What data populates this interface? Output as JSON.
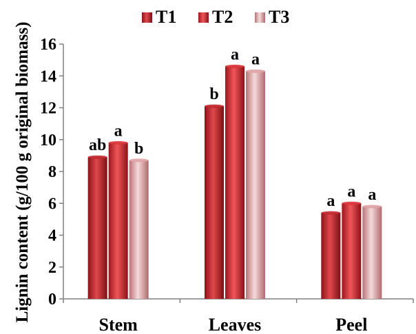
{
  "chart_data": {
    "type": "bar",
    "title": "",
    "xlabel": "",
    "ylabel": "Lignin content (g/100 g original biomass)",
    "ylim": [
      0,
      16
    ],
    "yticks": [
      0,
      2,
      4,
      6,
      8,
      10,
      12,
      14,
      16
    ],
    "grid": false,
    "legend_position": "top",
    "categories": [
      "Stem",
      "Leaves",
      "Peel"
    ],
    "series": [
      {
        "name": "T1",
        "values": [
          8.9,
          12.1,
          5.4
        ],
        "labels": [
          "ab",
          "b",
          "a"
        ],
        "color": "#c0282d"
      },
      {
        "name": "T2",
        "values": [
          9.8,
          14.6,
          6.0
        ],
        "labels": [
          "a",
          "a",
          "a"
        ],
        "color": "#d9343a"
      },
      {
        "name": "T3",
        "values": [
          8.7,
          14.3,
          5.8
        ],
        "labels": [
          "b",
          "a",
          "a"
        ],
        "color": "#dfa3a6"
      }
    ]
  }
}
